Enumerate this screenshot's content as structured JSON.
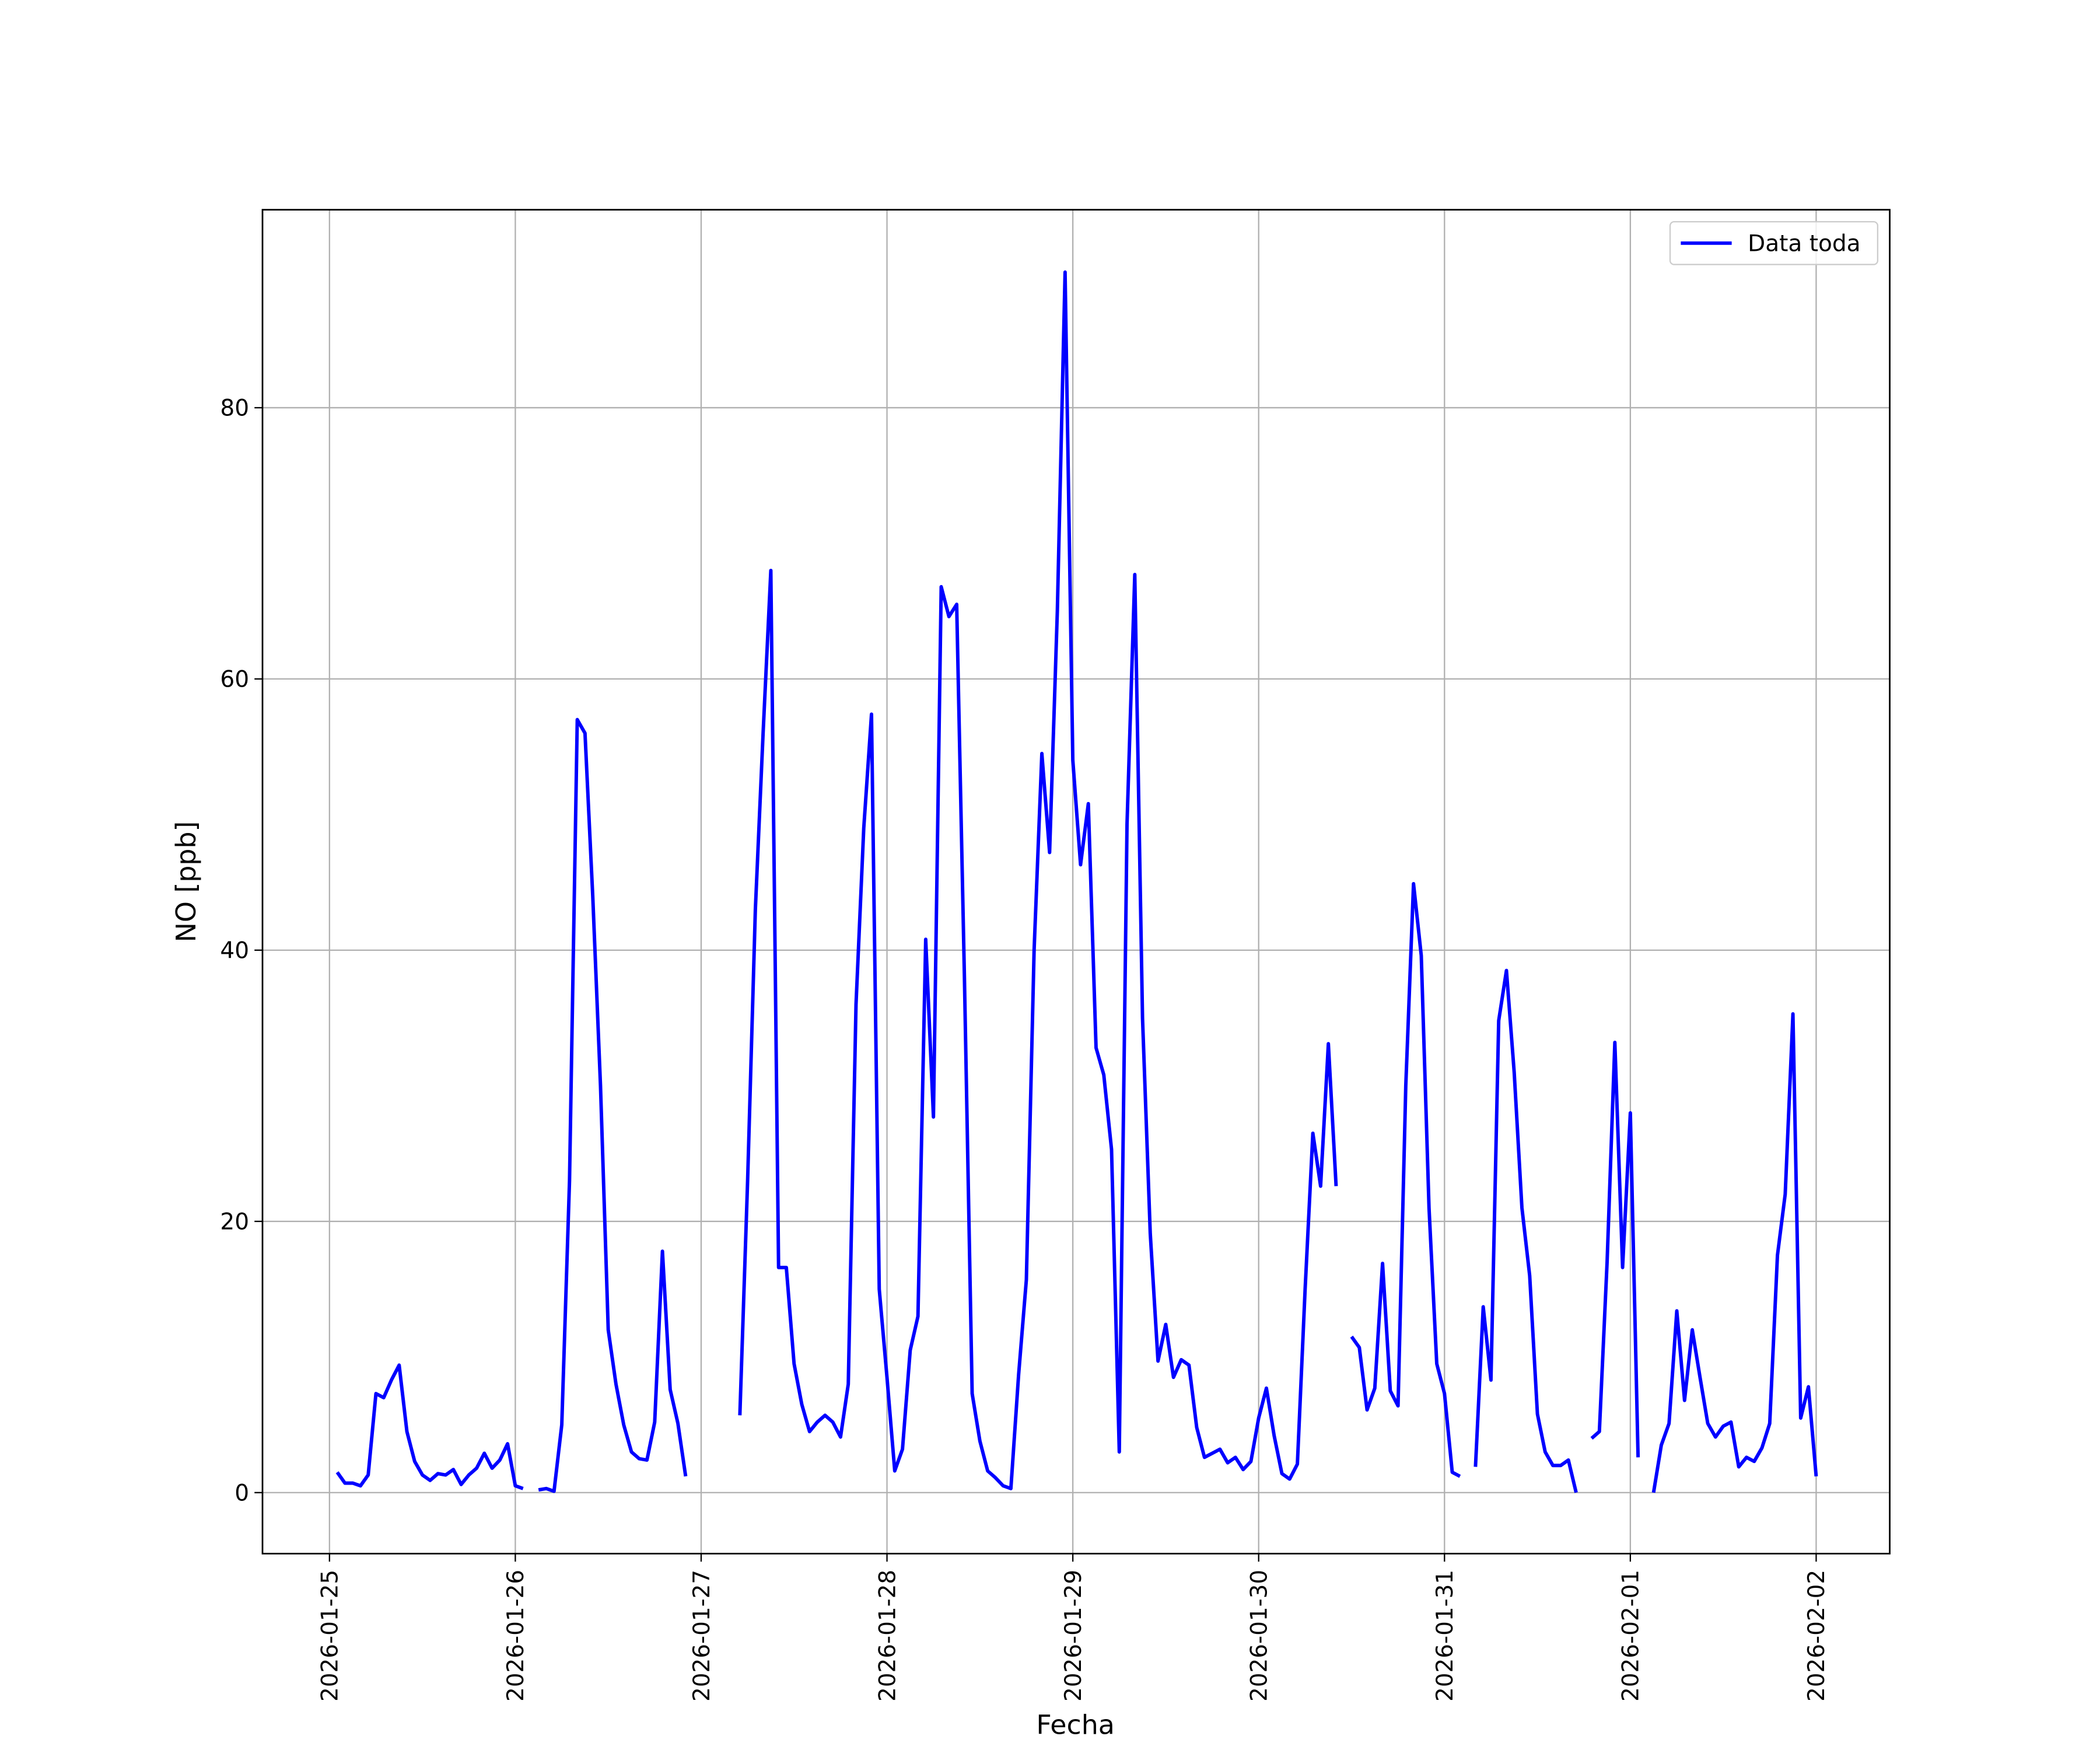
{
  "chart_data": {
    "type": "line",
    "xlabel": "Fecha",
    "ylabel": "NO [ppb]",
    "grid": true,
    "legend": "upper right",
    "xlim": [
      "2026-01-24 15:21",
      "2026-02-02 09:30"
    ],
    "xticks": [
      "2026-01-25",
      "2026-01-26",
      "2026-01-27",
      "2026-01-28",
      "2026-01-29",
      "2026-01-30",
      "2026-01-31",
      "2026-02-01",
      "2026-02-02"
    ],
    "ylim": [
      -4.5,
      94.6
    ],
    "yticks": [
      0,
      20,
      40,
      60,
      80
    ],
    "x": [
      "2026-01-25 01:00",
      "2026-01-25 02:00",
      "2026-01-25 03:00",
      "2026-01-25 04:00",
      "2026-01-25 05:00",
      "2026-01-25 06:00",
      "2026-01-25 07:00",
      "2026-01-25 08:00",
      "2026-01-25 09:00",
      "2026-01-25 10:00",
      "2026-01-25 11:00",
      "2026-01-25 12:00",
      "2026-01-25 13:00",
      "2026-01-25 14:00",
      "2026-01-25 15:00",
      "2026-01-25 16:00",
      "2026-01-25 17:00",
      "2026-01-25 18:00",
      "2026-01-25 19:00",
      "2026-01-25 20:00",
      "2026-01-25 21:00",
      "2026-01-25 22:00",
      "2026-01-25 23:00",
      "2026-01-26 00:00",
      "2026-01-26 01:00",
      "2026-01-26 02:00",
      "2026-01-26 03:00",
      "2026-01-26 04:00",
      "2026-01-26 05:00",
      "2026-01-26 06:00",
      "2026-01-26 07:00",
      "2026-01-26 08:00",
      "2026-01-26 09:00",
      "2026-01-26 10:00",
      "2026-01-26 11:00",
      "2026-01-26 12:00",
      "2026-01-26 13:00",
      "2026-01-26 14:00",
      "2026-01-26 15:00",
      "2026-01-26 16:00",
      "2026-01-26 17:00",
      "2026-01-26 18:00",
      "2026-01-26 19:00",
      "2026-01-26 20:00",
      "2026-01-26 21:00",
      "2026-01-26 22:00",
      "2026-01-26 23:00",
      "2026-01-27 00:00",
      "2026-01-27 01:00",
      "2026-01-27 02:00",
      "2026-01-27 03:00",
      "2026-01-27 04:00",
      "2026-01-27 05:00",
      "2026-01-27 06:00",
      "2026-01-27 07:00",
      "2026-01-27 08:00",
      "2026-01-27 09:00",
      "2026-01-27 10:00",
      "2026-01-27 11:00",
      "2026-01-27 12:00",
      "2026-01-27 13:00",
      "2026-01-27 14:00",
      "2026-01-27 15:00",
      "2026-01-27 16:00",
      "2026-01-27 17:00",
      "2026-01-27 18:00",
      "2026-01-27 19:00",
      "2026-01-27 20:00",
      "2026-01-27 21:00",
      "2026-01-27 22:00",
      "2026-01-27 23:00",
      "2026-01-28 00:00",
      "2026-01-28 01:00",
      "2026-01-28 02:00",
      "2026-01-28 03:00",
      "2026-01-28 04:00",
      "2026-01-28 05:00",
      "2026-01-28 06:00",
      "2026-01-28 07:00",
      "2026-01-28 08:00",
      "2026-01-28 09:00",
      "2026-01-28 10:00",
      "2026-01-28 11:00",
      "2026-01-28 12:00",
      "2026-01-28 13:00",
      "2026-01-28 14:00",
      "2026-01-28 15:00",
      "2026-01-28 16:00",
      "2026-01-28 17:00",
      "2026-01-28 18:00",
      "2026-01-28 19:00",
      "2026-01-28 20:00",
      "2026-01-28 21:00",
      "2026-01-28 22:00",
      "2026-01-28 23:00",
      "2026-01-29 00:00",
      "2026-01-29 01:00",
      "2026-01-29 02:00",
      "2026-01-29 03:00",
      "2026-01-29 04:00",
      "2026-01-29 05:00",
      "2026-01-29 06:00",
      "2026-01-29 07:00",
      "2026-01-29 08:00",
      "2026-01-29 09:00",
      "2026-01-29 10:00",
      "2026-01-29 11:00",
      "2026-01-29 12:00",
      "2026-01-29 13:00",
      "2026-01-29 14:00",
      "2026-01-29 15:00",
      "2026-01-29 16:00",
      "2026-01-29 17:00",
      "2026-01-29 18:00",
      "2026-01-29 19:00",
      "2026-01-29 20:00",
      "2026-01-29 21:00",
      "2026-01-29 22:00",
      "2026-01-29 23:00",
      "2026-01-30 00:00",
      "2026-01-30 01:00",
      "2026-01-30 02:00",
      "2026-01-30 03:00",
      "2026-01-30 04:00",
      "2026-01-30 05:00",
      "2026-01-30 06:00",
      "2026-01-30 07:00",
      "2026-01-30 08:00",
      "2026-01-30 09:00",
      "2026-01-30 10:00",
      "2026-01-30 11:00",
      "2026-01-30 12:00",
      "2026-01-30 13:00",
      "2026-01-30 14:00",
      "2026-01-30 15:00",
      "2026-01-30 16:00",
      "2026-01-30 17:00",
      "2026-01-30 18:00",
      "2026-01-30 19:00",
      "2026-01-30 20:00",
      "2026-01-30 21:00",
      "2026-01-30 22:00",
      "2026-01-30 23:00",
      "2026-01-31 00:00",
      "2026-01-31 01:00",
      "2026-01-31 02:00",
      "2026-01-31 03:00",
      "2026-01-31 04:00",
      "2026-01-31 05:00",
      "2026-01-31 06:00",
      "2026-01-31 07:00",
      "2026-01-31 08:00",
      "2026-01-31 09:00",
      "2026-01-31 10:00",
      "2026-01-31 11:00",
      "2026-01-31 12:00",
      "2026-01-31 13:00",
      "2026-01-31 14:00",
      "2026-01-31 15:00",
      "2026-01-31 16:00",
      "2026-01-31 17:00",
      "2026-01-31 18:00",
      "2026-01-31 19:00",
      "2026-01-31 20:00",
      "2026-01-31 21:00",
      "2026-01-31 22:00",
      "2026-01-31 23:00",
      "2026-02-01 00:00",
      "2026-02-01 01:00",
      "2026-02-01 02:00",
      "2026-02-01 03:00",
      "2026-02-01 04:00",
      "2026-02-01 05:00",
      "2026-02-01 06:00",
      "2026-02-01 07:00",
      "2026-02-01 08:00",
      "2026-02-01 09:00",
      "2026-02-01 10:00",
      "2026-02-01 11:00",
      "2026-02-01 12:00",
      "2026-02-01 13:00",
      "2026-02-01 14:00",
      "2026-02-01 15:00",
      "2026-02-01 16:00",
      "2026-02-01 17:00",
      "2026-02-01 18:00",
      "2026-02-01 19:00",
      "2026-02-01 20:00",
      "2026-02-01 21:00",
      "2026-02-01 22:00",
      "2026-02-01 23:00",
      "2026-02-02 00:00"
    ],
    "series": [
      {
        "name": "Data toda",
        "color": "#0000ff",
        "values": [
          1.5,
          0.7,
          0.7,
          0.5,
          1.3,
          7.3,
          7.0,
          8.3,
          9.4,
          4.5,
          2.3,
          1.3,
          0.9,
          1.4,
          1.3,
          1.7,
          0.6,
          1.3,
          1.8,
          2.9,
          1.8,
          2.4,
          3.6,
          0.5,
          0.3,
          null,
          0.2,
          0.3,
          0.1,
          5.0,
          23,
          57,
          56,
          44,
          30,
          12,
          8,
          5,
          3,
          2.5,
          2.4,
          5.2,
          17.8,
          7.6,
          5.1,
          1.2,
          null,
          null,
          null,
          null,
          null,
          null,
          5.7,
          23,
          43,
          56,
          68,
          16.6,
          16.6,
          9.5,
          6.5,
          4.5,
          5.2,
          5.7,
          5.2,
          4.1,
          8,
          36,
          49,
          57.4,
          15,
          8.5,
          1.6,
          3.2,
          10.5,
          13,
          40.8,
          27.7,
          66.8,
          64.6,
          65.5,
          38,
          7.3,
          3.8,
          1.6,
          1.1,
          0.5,
          0.3,
          8.7,
          15.7,
          40,
          54.5,
          47.2,
          65,
          90,
          54,
          46.3,
          50.8,
          32.8,
          30.8,
          25.3,
          3,
          49.3,
          67.7,
          35,
          19.1,
          9.7,
          12.4,
          8.5,
          9.8,
          9.4,
          4.8,
          2.6,
          2.9,
          3.2,
          2.2,
          2.6,
          1.7,
          2.3,
          5.5,
          7.7,
          4.2,
          1.4,
          1.0,
          2.1,
          15,
          26.5,
          22.6,
          33.1,
          22.6,
          null,
          11.5,
          10.7,
          6.1,
          7.7,
          16.9,
          7.5,
          6.4,
          30,
          44.9,
          39.6,
          21,
          9.5,
          7.3,
          1.5,
          1.2,
          null,
          1.9,
          13.7,
          8.3,
          34.8,
          38.5,
          31,
          21,
          16,
          5.8,
          3,
          2,
          2,
          2.4,
          0,
          null,
          4,
          4.5,
          17,
          33.2,
          16.6,
          28,
          2.6,
          null,
          0,
          3.5,
          5.1,
          13.4,
          6.8,
          12,
          8.5,
          5.1,
          4.1,
          4.9,
          5.2,
          1.9,
          2.6,
          2.3,
          3.3,
          5.1,
          17.5,
          22,
          35.3,
          5.5,
          7.8,
          1.2
        ]
      }
    ]
  }
}
